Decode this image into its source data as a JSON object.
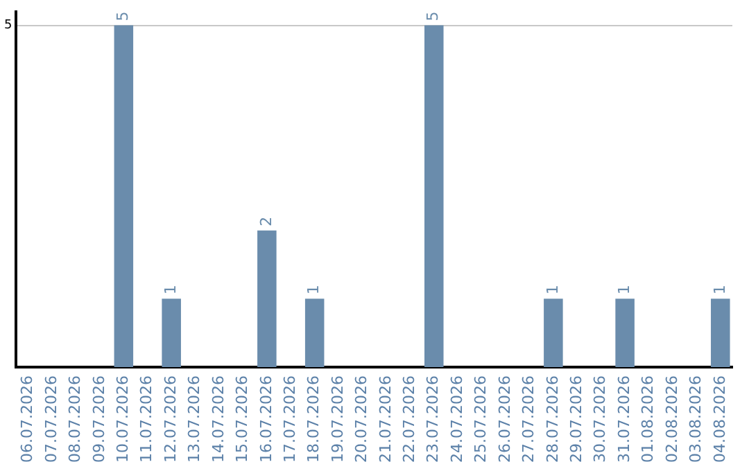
{
  "chart_data": {
    "type": "bar",
    "categories": [
      "06.07.2026",
      "07.07.2026",
      "08.07.2026",
      "09.07.2026",
      "10.07.2026",
      "11.07.2026",
      "12.07.2026",
      "13.07.2026",
      "14.07.2026",
      "15.07.2026",
      "16.07.2026",
      "17.07.2026",
      "18.07.2026",
      "19.07.2026",
      "20.07.2026",
      "21.07.2026",
      "22.07.2026",
      "23.07.2026",
      "24.07.2026",
      "25.07.2026",
      "26.07.2026",
      "27.07.2026",
      "28.07.2026",
      "29.07.2026",
      "30.07.2026",
      "31.07.2026",
      "01.08.2026",
      "02.08.2026",
      "03.08.2026",
      "04.08.2026"
    ],
    "values": [
      0,
      0,
      0,
      0,
      5,
      0,
      1,
      0,
      0,
      0,
      2,
      0,
      1,
      0,
      0,
      0,
      0,
      5,
      0,
      0,
      0,
      0,
      1,
      0,
      0,
      1,
      0,
      0,
      0,
      1
    ],
    "value_labels": [
      null,
      null,
      null,
      null,
      "5",
      null,
      "1",
      null,
      null,
      null,
      "2",
      null,
      "1",
      null,
      null,
      null,
      null,
      "5",
      null,
      null,
      null,
      null,
      "1",
      null,
      null,
      "1",
      null,
      null,
      null,
      "1"
    ],
    "color": "#6a8cac",
    "ylim": [
      0,
      5.2
    ],
    "yticks": [
      5
    ],
    "grid": "y",
    "legend": false
  }
}
